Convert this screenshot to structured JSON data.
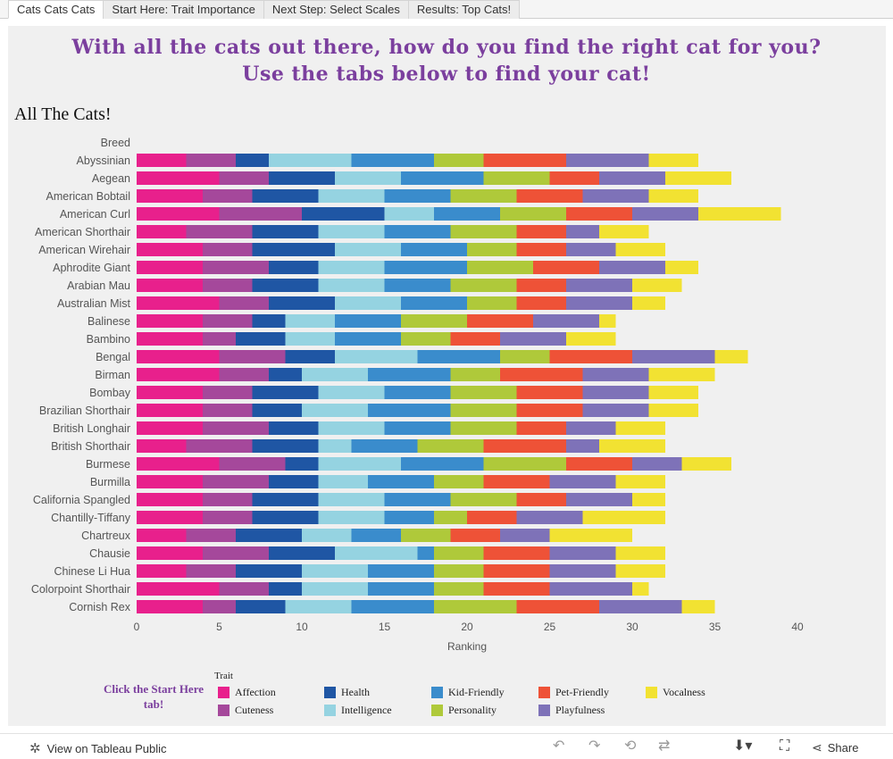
{
  "tabs": [
    {
      "label": "Cats Cats Cats",
      "active": true
    },
    {
      "label": "Start Here: Trait Importance",
      "active": false
    },
    {
      "label": "Next Step: Select Scales",
      "active": false
    },
    {
      "label": "Results: Top Cats!",
      "active": false
    }
  ],
  "headline": {
    "line1": "With all the cats out there, how do you find the right cat for you?",
    "line2": "Use the tabs below to find your cat!"
  },
  "chart_title": "All The Cats!",
  "legend": {
    "note": "Click the Start Here tab!",
    "title": "Trait"
  },
  "footer": {
    "view_label": "View on Tableau Public",
    "share_label": "Share"
  },
  "chart_data": {
    "type": "bar",
    "orientation": "horizontal",
    "stacked": true,
    "title": "All The Cats!",
    "row_header": "Breed",
    "xlabel": "Ranking",
    "xlim": [
      0,
      40
    ],
    "xticks": [
      0,
      5,
      10,
      15,
      20,
      25,
      30,
      35,
      40
    ],
    "categories": [
      "Abyssinian",
      "Aegean",
      "American Bobtail",
      "American Curl",
      "American Shorthair",
      "American Wirehair",
      "Aphrodite Giant",
      "Arabian Mau",
      "Australian Mist",
      "Balinese",
      "Bambino",
      "Bengal",
      "Birman",
      "Bombay",
      "Brazilian Shorthair",
      "British Longhair",
      "British Shorthair",
      "Burmese",
      "Burmilla",
      "California Spangled",
      "Chantilly-Tiffany",
      "Chartreux",
      "Chausie",
      "Chinese Li Hua",
      "Colorpoint Shorthair",
      "Cornish Rex"
    ],
    "series": [
      {
        "name": "Affection",
        "color": "#e8208c",
        "values": [
          3,
          5,
          4,
          5,
          3,
          4,
          4,
          4,
          5,
          4,
          4,
          5,
          5,
          4,
          4,
          4,
          3,
          5,
          4,
          4,
          4,
          3,
          4,
          3,
          5,
          4
        ]
      },
      {
        "name": "Cuteness",
        "color": "#a5489b",
        "values": [
          3,
          3,
          3,
          5,
          4,
          3,
          4,
          3,
          3,
          3,
          2,
          4,
          3,
          3,
          3,
          4,
          4,
          4,
          4,
          3,
          3,
          3,
          4,
          3,
          3,
          2
        ]
      },
      {
        "name": "Health",
        "color": "#1f56a4",
        "values": [
          2,
          4,
          4,
          5,
          4,
          5,
          3,
          4,
          4,
          2,
          3,
          3,
          2,
          4,
          3,
          3,
          4,
          2,
          3,
          4,
          4,
          4,
          4,
          4,
          2,
          3
        ]
      },
      {
        "name": "Intelligence",
        "color": "#95d3e1",
        "values": [
          5,
          4,
          4,
          3,
          4,
          4,
          4,
          4,
          4,
          3,
          3,
          5,
          4,
          4,
          4,
          4,
          2,
          5,
          3,
          4,
          4,
          3,
          5,
          4,
          4,
          4
        ]
      },
      {
        "name": "Kid-Friendly",
        "color": "#3a8ccc",
        "values": [
          5,
          5,
          4,
          4,
          4,
          4,
          5,
          4,
          4,
          4,
          4,
          5,
          5,
          4,
          5,
          4,
          4,
          5,
          4,
          4,
          3,
          3,
          1,
          4,
          4,
          5
        ]
      },
      {
        "name": "Personality",
        "color": "#afc93a",
        "values": [
          3,
          4,
          4,
          4,
          4,
          3,
          4,
          4,
          3,
          4,
          3,
          3,
          3,
          4,
          4,
          4,
          4,
          5,
          3,
          4,
          2,
          3,
          3,
          3,
          3,
          5
        ]
      },
      {
        "name": "Pet-Friendly",
        "color": "#ee5237",
        "values": [
          5,
          3,
          4,
          4,
          3,
          3,
          4,
          3,
          3,
          4,
          3,
          5,
          5,
          4,
          4,
          3,
          5,
          4,
          4,
          3,
          3,
          3,
          4,
          4,
          4,
          5
        ]
      },
      {
        "name": "Playfulness",
        "color": "#7e72b8",
        "values": [
          5,
          4,
          4,
          4,
          2,
          3,
          4,
          4,
          4,
          4,
          4,
          5,
          4,
          4,
          4,
          3,
          2,
          3,
          4,
          4,
          4,
          3,
          4,
          4,
          5,
          5
        ]
      },
      {
        "name": "Vocalness",
        "color": "#f2e232",
        "values": [
          3,
          4,
          3,
          5,
          3,
          3,
          2,
          3,
          2,
          1,
          3,
          2,
          4,
          3,
          3,
          3,
          4,
          3,
          3,
          2,
          5,
          5,
          3,
          3,
          1,
          2
        ]
      }
    ]
  }
}
